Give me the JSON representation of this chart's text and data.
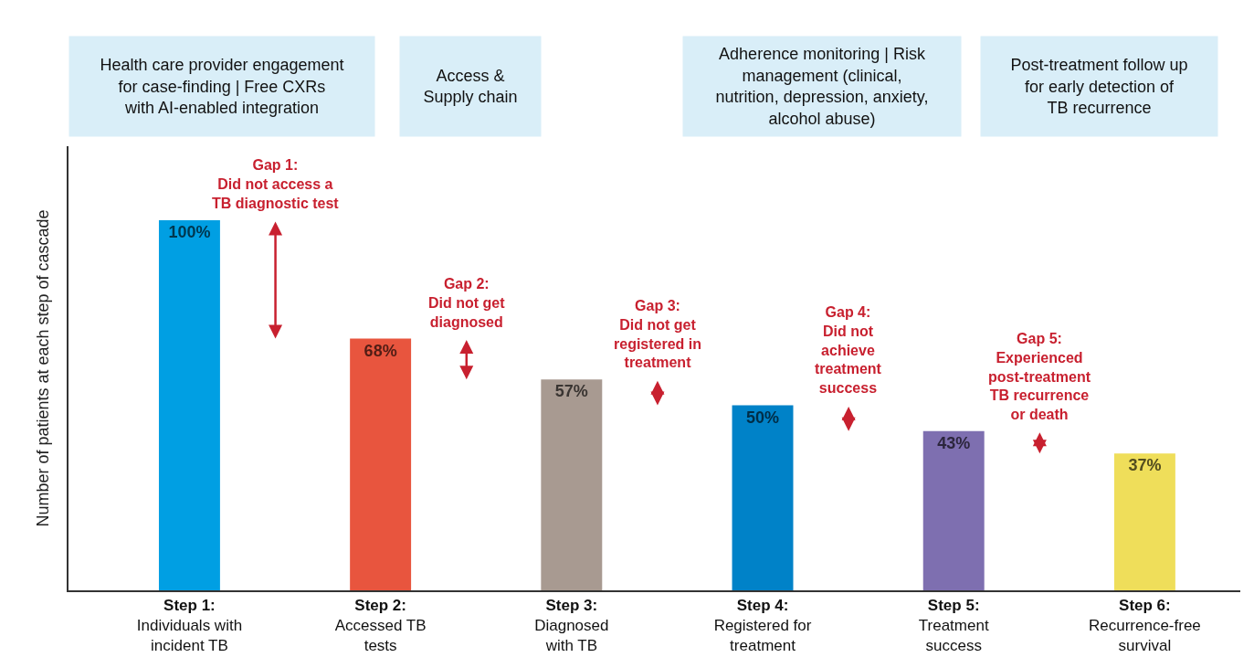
{
  "chart_data": {
    "type": "bar",
    "ylabel": "Number of patients at each step of cascade",
    "categories": [
      "Step 1:\nIndividuals with\nincident TB",
      "Step 2:\nAccessed TB\ntests",
      "Step 3:\nDiagnosed\nwith TB",
      "Step 4:\nRegistered for\ntreatment",
      "Step 5:\nTreatment\nsuccess",
      "Step 6:\nRecurrence-free\nsurvival"
    ],
    "values": [
      100,
      68,
      57,
      50,
      43,
      37
    ],
    "value_labels": [
      "100%",
      "68%",
      "57%",
      "50%",
      "43%",
      "37%"
    ],
    "colors": [
      "#009fe3",
      "#e8553e",
      "#a89a91",
      "#0082c8",
      "#7e6fb0",
      "#efde5a"
    ],
    "annotations": [
      "Health care provider engagement\nfor case-finding | Free CXRs\nwith AI-enabled integration",
      "Access &\nSupply chain",
      "Adherence monitoring | Risk\nmanagement (clinical,\nnutrition, depression, anxiety,\nalcohol abuse)",
      "Post-treatment follow up\nfor early detection of\nTB recurrence",
      "Gap 1:\nDid not access a\nTB diagnostic test",
      "Gap 2:\nDid not get\ndiagnosed",
      "Gap 3:\nDid not get\nregistered in\ntreatment",
      "Gap 4:\nDid not\nachieve\ntreatment\nsuccess",
      "Gap 5:\nExperienced\npost-treatment\nTB recurrence\nor death"
    ],
    "tick_labels": "x"
  }
}
